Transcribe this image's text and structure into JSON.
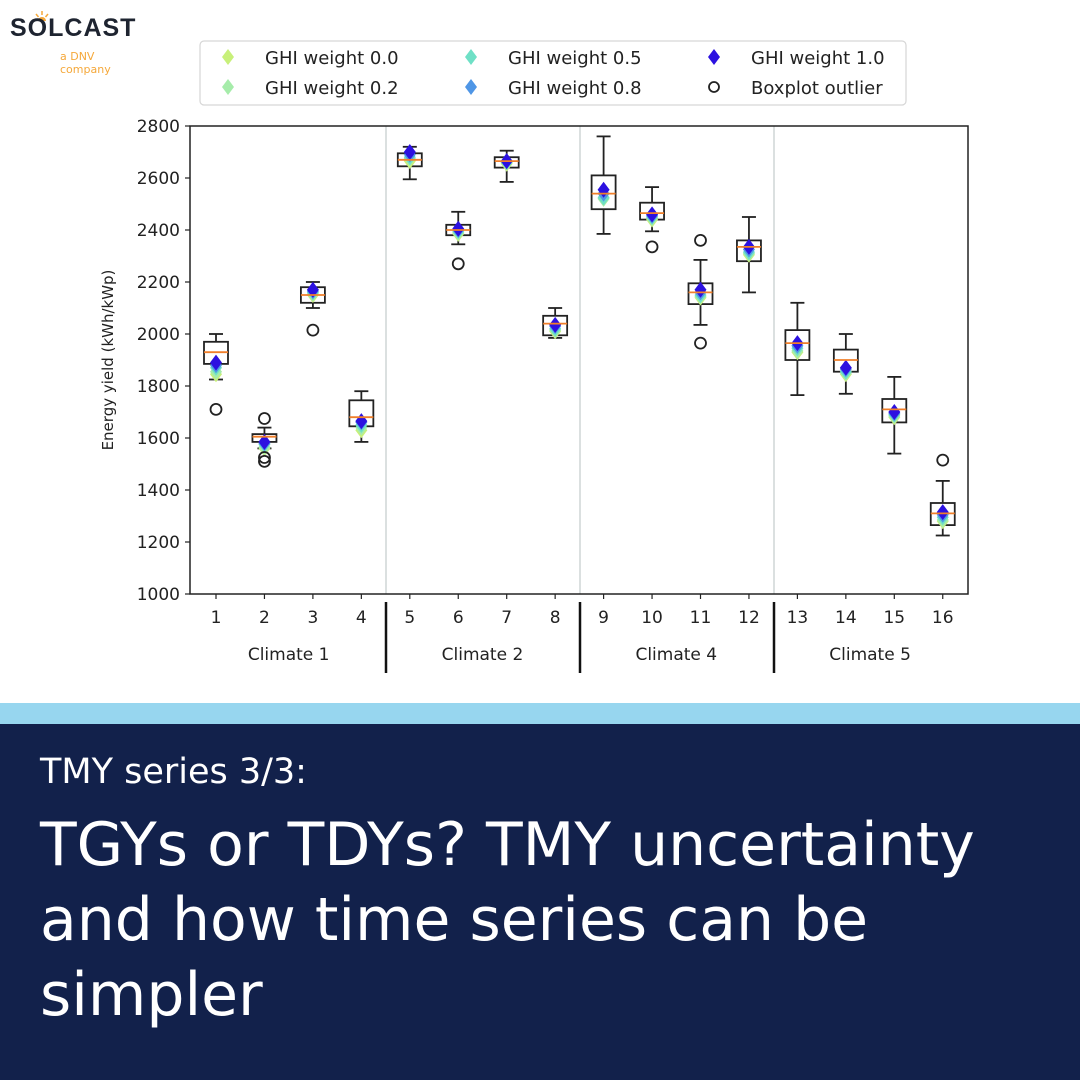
{
  "brand": {
    "name": "SOLCAST",
    "tagline": "a DNV company"
  },
  "colors": {
    "banner_bg": "#12214b",
    "stripe": "#97d6ef",
    "brand_orange": "#f5a83a"
  },
  "banner": {
    "kicker": "TMY series 3/3:",
    "headline": "TGYs or TDYs? TMY uncertainty and how time series can be simpler"
  },
  "chart_data": {
    "type": "box",
    "title": "",
    "xlabel": "",
    "ylabel": "Energy yield (kWh/kWp)",
    "ylim": [
      1000,
      2800
    ],
    "yticks": [
      1000,
      1200,
      1400,
      1600,
      1800,
      2000,
      2200,
      2400,
      2600,
      2800
    ],
    "grid": false,
    "legend_position": "top (above axes), 3 columns",
    "legend": [
      {
        "label": "GHI weight 0.0",
        "marker": "diamond",
        "color": "#c8f07a"
      },
      {
        "label": "GHI weight 0.2",
        "marker": "diamond",
        "color": "#a6ecaa"
      },
      {
        "label": "GHI weight 0.5",
        "marker": "diamond",
        "color": "#6fe0c6"
      },
      {
        "label": "GHI weight 0.8",
        "marker": "diamond",
        "color": "#4f96e6"
      },
      {
        "label": "GHI weight 1.0",
        "marker": "diamond",
        "color": "#2c11e0"
      },
      {
        "label": "Boxplot outlier",
        "marker": "circle-open",
        "color": "#222222"
      }
    ],
    "groups": [
      {
        "label": "Climate 1",
        "sites": [
          1,
          2,
          3,
          4
        ]
      },
      {
        "label": "Climate 2",
        "sites": [
          5,
          6,
          7,
          8
        ]
      },
      {
        "label": "Climate 4",
        "sites": [
          9,
          10,
          11,
          12
        ]
      },
      {
        "label": "Climate 5",
        "sites": [
          13,
          14,
          15,
          16
        ]
      }
    ],
    "categories": [
      "1",
      "2",
      "3",
      "4",
      "5",
      "6",
      "7",
      "8",
      "9",
      "10",
      "11",
      "12",
      "13",
      "14",
      "15",
      "16"
    ],
    "boxes": [
      {
        "site": 1,
        "whislo": 1825,
        "q1": 1885,
        "med": 1930,
        "q3": 1970,
        "whishi": 2000,
        "outliers": [
          1710
        ],
        "weights": [
          1845,
          1855,
          1870,
          1880,
          1890
        ]
      },
      {
        "site": 2,
        "whislo": 1560,
        "q1": 1585,
        "med": 1605,
        "q3": 1615,
        "whishi": 1640,
        "outliers": [
          1675,
          1525,
          1510
        ],
        "weights": [
          1560,
          1565,
          1575,
          1580,
          1585
        ]
      },
      {
        "site": 3,
        "whislo": 2100,
        "q1": 2120,
        "med": 2150,
        "q3": 2180,
        "whishi": 2200,
        "outliers": [
          2015
        ],
        "weights": [
          2150,
          2155,
          2160,
          2165,
          2170
        ]
      },
      {
        "site": 4,
        "whislo": 1585,
        "q1": 1645,
        "med": 1680,
        "q3": 1745,
        "whishi": 1780,
        "outliers": [],
        "weights": [
          1630,
          1640,
          1650,
          1660,
          1665
        ]
      },
      {
        "site": 5,
        "whislo": 2595,
        "q1": 2645,
        "med": 2670,
        "q3": 2695,
        "whishi": 2720,
        "outliers": [],
        "weights": [
          2665,
          2675,
          2680,
          2690,
          2700
        ]
      },
      {
        "site": 6,
        "whislo": 2345,
        "q1": 2380,
        "med": 2400,
        "q3": 2420,
        "whishi": 2470,
        "outliers": [
          2270
        ],
        "weights": [
          2385,
          2390,
          2395,
          2400,
          2405
        ]
      },
      {
        "site": 7,
        "whislo": 2585,
        "q1": 2640,
        "med": 2665,
        "q3": 2680,
        "whishi": 2705,
        "outliers": [],
        "weights": [
          2655,
          2660,
          2660,
          2665,
          2665
        ]
      },
      {
        "site": 8,
        "whislo": 1985,
        "q1": 1995,
        "med": 2040,
        "q3": 2070,
        "whishi": 2100,
        "outliers": [],
        "weights": [
          2010,
          2015,
          2020,
          2030,
          2035
        ]
      },
      {
        "site": 9,
        "whislo": 2385,
        "q1": 2480,
        "med": 2540,
        "q3": 2610,
        "whishi": 2760,
        "outliers": [],
        "weights": [
          2520,
          2520,
          2525,
          2540,
          2555
        ]
      },
      {
        "site": 10,
        "whislo": 2395,
        "q1": 2440,
        "med": 2465,
        "q3": 2505,
        "whishi": 2565,
        "outliers": [
          2335
        ],
        "weights": [
          2440,
          2445,
          2450,
          2455,
          2460
        ]
      },
      {
        "site": 11,
        "whislo": 2035,
        "q1": 2115,
        "med": 2160,
        "q3": 2195,
        "whishi": 2285,
        "outliers": [
          2360,
          1965
        ],
        "weights": [
          2140,
          2145,
          2150,
          2160,
          2170
        ]
      },
      {
        "site": 12,
        "whislo": 2160,
        "q1": 2280,
        "med": 2335,
        "q3": 2360,
        "whishi": 2450,
        "outliers": [],
        "weights": [
          2305,
          2310,
          2315,
          2325,
          2335
        ]
      },
      {
        "site": 13,
        "whislo": 1765,
        "q1": 1900,
        "med": 1965,
        "q3": 2015,
        "whishi": 2120,
        "outliers": [],
        "weights": [
          1930,
          1935,
          1945,
          1955,
          1965
        ]
      },
      {
        "site": 14,
        "whislo": 1770,
        "q1": 1855,
        "med": 1900,
        "q3": 1940,
        "whishi": 2000,
        "outliers": [],
        "weights": [
          1845,
          1850,
          1855,
          1865,
          1870
        ]
      },
      {
        "site": 15,
        "whislo": 1540,
        "q1": 1660,
        "med": 1710,
        "q3": 1750,
        "whishi": 1835,
        "outliers": [],
        "weights": [
          1680,
          1685,
          1690,
          1695,
          1700
        ]
      },
      {
        "site": 16,
        "whislo": 1225,
        "q1": 1265,
        "med": 1310,
        "q3": 1350,
        "whishi": 1435,
        "outliers": [
          1515
        ],
        "weights": [
          1280,
          1285,
          1295,
          1305,
          1315
        ]
      }
    ]
  }
}
